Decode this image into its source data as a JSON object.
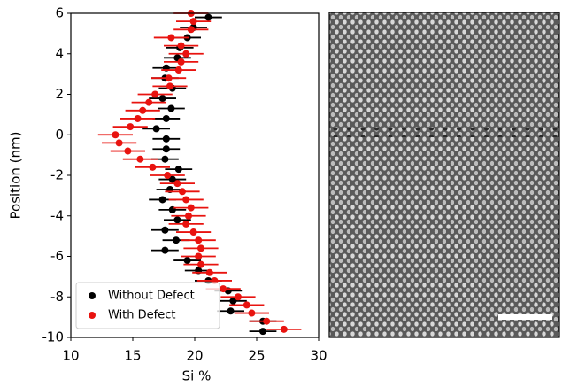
{
  "chart_data": {
    "type": "scatter",
    "xlabel": "Si %",
    "ylabel": "Position (nm)",
    "xlim": [
      10,
      30
    ],
    "ylim": [
      -10,
      6
    ],
    "xticks": [
      10,
      15,
      20,
      25,
      30
    ],
    "yticks": [
      -10,
      -8,
      -6,
      -4,
      -2,
      0,
      2,
      4,
      6
    ],
    "legend": "lower left",
    "series": [
      {
        "name": "Without Defect",
        "color": "#000000",
        "xerr": 1.1,
        "x": [
          21.1,
          19.9,
          19.4,
          18.8,
          18.6,
          17.7,
          17.6,
          18.2,
          17.4,
          18.1,
          17.7,
          16.9,
          17.7,
          17.7,
          17.6,
          18.7,
          18.2,
          18.0,
          17.4,
          18.2,
          18.6,
          17.6,
          18.5,
          17.6,
          19.4,
          20.3,
          21.1,
          22.7,
          23.1,
          22.9,
          25.5,
          25.5
        ],
        "y": [
          5.8,
          5.3,
          4.8,
          4.3,
          3.8,
          3.3,
          2.8,
          2.3,
          1.8,
          1.3,
          0.8,
          0.3,
          -0.2,
          -0.7,
          -1.2,
          -1.7,
          -2.2,
          -2.7,
          -3.2,
          -3.7,
          -4.2,
          -4.7,
          -5.2,
          -5.7,
          -6.2,
          -6.7,
          -7.2,
          -7.7,
          -8.2,
          -8.7,
          -9.2,
          -9.7
        ]
      },
      {
        "name": "With Defect",
        "color": "#e8130f",
        "xerr": 1.4,
        "x": [
          19.7,
          19.9,
          19.7,
          18.1,
          18.9,
          19.3,
          18.9,
          18.7,
          17.9,
          18.0,
          16.8,
          16.3,
          15.8,
          15.4,
          14.8,
          13.6,
          13.9,
          14.6,
          15.6,
          16.6,
          17.8,
          18.6,
          19.0,
          19.3,
          19.7,
          19.5,
          19.3,
          19.9,
          20.3,
          20.5,
          20.3,
          20.5,
          21.2,
          21.6,
          22.3,
          23.5,
          24.2,
          24.6,
          25.8,
          27.2
        ],
        "y": [
          6.0,
          5.6,
          5.2,
          4.8,
          4.4,
          4.0,
          3.6,
          3.2,
          2.8,
          2.4,
          2.0,
          1.6,
          1.2,
          0.8,
          0.4,
          0.0,
          -0.4,
          -0.8,
          -1.2,
          -1.6,
          -2.0,
          -2.4,
          -2.8,
          -3.2,
          -3.6,
          -4.0,
          -4.4,
          -4.8,
          -5.2,
          -5.6,
          -6.0,
          -6.4,
          -6.8,
          -7.2,
          -7.6,
          -8.0,
          -8.4,
          -8.8,
          -9.2,
          -9.6
        ]
      }
    ]
  }
}
